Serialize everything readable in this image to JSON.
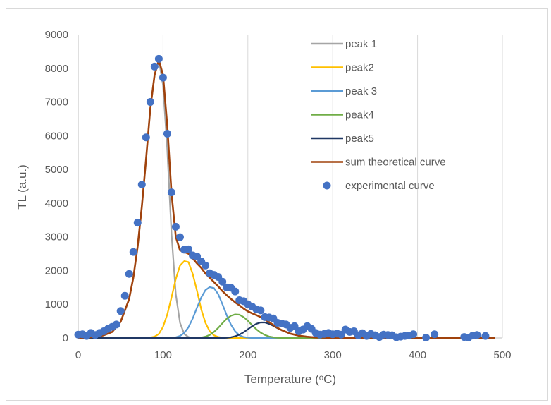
{
  "chart_data": {
    "type": "scatter",
    "title": "",
    "xlabel": "Temperature (ᵒC)",
    "ylabel": "TL (a.u.)",
    "xlim": [
      0,
      500
    ],
    "ylim": [
      0,
      9000
    ],
    "xticks": [
      0,
      100,
      200,
      300,
      400,
      500
    ],
    "yticks": [
      0,
      1000,
      2000,
      3000,
      4000,
      5000,
      6000,
      7000,
      8000,
      9000
    ],
    "grid": "vertical",
    "legend_position": "top-right",
    "curve_x": [
      0,
      20,
      30,
      40,
      50,
      60,
      65,
      70,
      75,
      80,
      85,
      90,
      95,
      100,
      105,
      110,
      115,
      120,
      125,
      130,
      135,
      140,
      145,
      150,
      155,
      160,
      165,
      170,
      175,
      180,
      185,
      190,
      195,
      200,
      205,
      210,
      215,
      220,
      225,
      230,
      235,
      240,
      250,
      260,
      270,
      280,
      300,
      320,
      350,
      400,
      450,
      490
    ],
    "series": [
      {
        "name": "peak 1",
        "kind": "line",
        "color": "#a5a5a5",
        "values": [
          0,
          30,
          80,
          180,
          480,
          1150,
          1800,
          2700,
          3900,
          5300,
          6800,
          7800,
          8250,
          7500,
          5600,
          3100,
          1300,
          450,
          120,
          30,
          5,
          0,
          0,
          0,
          0,
          0,
          0,
          0,
          0,
          0,
          0,
          0,
          0,
          0,
          0,
          0,
          0,
          0,
          0,
          0,
          0,
          0,
          0,
          0,
          0,
          0,
          0,
          0,
          0,
          0,
          0,
          0
        ]
      },
      {
        "name": "peak2",
        "kind": "line",
        "color": "#ffc000",
        "values": [
          0,
          0,
          0,
          0,
          0,
          0,
          0,
          0,
          0,
          5,
          15,
          40,
          120,
          330,
          700,
          1200,
          1750,
          2150,
          2280,
          2250,
          1900,
          1400,
          850,
          450,
          200,
          80,
          30,
          10,
          0,
          0,
          0,
          0,
          0,
          0,
          0,
          0,
          0,
          0,
          0,
          0,
          0,
          0,
          0,
          0,
          0,
          0,
          0,
          0,
          0,
          0,
          0,
          0
        ]
      },
      {
        "name": "peak 3",
        "kind": "line",
        "color": "#5b9bd5",
        "values": [
          0,
          0,
          0,
          0,
          0,
          0,
          0,
          0,
          0,
          0,
          0,
          0,
          0,
          0,
          0,
          5,
          20,
          60,
          150,
          320,
          580,
          900,
          1200,
          1420,
          1510,
          1480,
          1300,
          1000,
          680,
          400,
          200,
          80,
          30,
          10,
          0,
          0,
          0,
          0,
          0,
          0,
          0,
          0,
          0,
          0,
          0,
          0,
          0,
          0,
          0,
          0,
          0,
          0
        ]
      },
      {
        "name": "peak4",
        "kind": "line",
        "color": "#70ad47",
        "values": [
          0,
          0,
          0,
          0,
          0,
          0,
          0,
          0,
          0,
          0,
          0,
          0,
          0,
          0,
          0,
          0,
          0,
          0,
          0,
          0,
          0,
          5,
          15,
          40,
          90,
          180,
          300,
          440,
          570,
          660,
          700,
          690,
          620,
          510,
          380,
          260,
          160,
          90,
          45,
          20,
          8,
          0,
          0,
          0,
          0,
          0,
          0,
          0,
          0,
          0,
          0,
          0
        ]
      },
      {
        "name": "peak5",
        "kind": "line",
        "color": "#203864",
        "values": [
          0,
          0,
          0,
          0,
          0,
          0,
          0,
          0,
          0,
          0,
          0,
          0,
          0,
          0,
          0,
          0,
          0,
          0,
          0,
          0,
          0,
          0,
          0,
          0,
          0,
          0,
          0,
          0,
          5,
          20,
          50,
          100,
          170,
          260,
          350,
          420,
          460,
          460,
          420,
          360,
          290,
          230,
          130,
          70,
          35,
          15,
          5,
          0,
          0,
          0,
          0,
          0
        ]
      },
      {
        "name": "sum theoretical curve",
        "kind": "line",
        "color": "#a0420c",
        "values": [
          0,
          30,
          80,
          180,
          480,
          1150,
          1800,
          2700,
          3900,
          5300,
          6800,
          7800,
          8250,
          7800,
          6300,
          4300,
          3000,
          2600,
          2550,
          2500,
          2360,
          2210,
          2080,
          1910,
          1790,
          1660,
          1530,
          1390,
          1270,
          1160,
          1060,
          970,
          870,
          790,
          730,
          680,
          620,
          550,
          470,
          385,
          300,
          230,
          130,
          70,
          35,
          15,
          5,
          0,
          0,
          0,
          0,
          0
        ]
      },
      {
        "name": "experimental curve",
        "kind": "scatter",
        "color": "#4472c4",
        "points": [
          [
            0,
            100
          ],
          [
            5,
            110
          ],
          [
            10,
            60
          ],
          [
            15,
            150
          ],
          [
            20,
            90
          ],
          [
            25,
            150
          ],
          [
            30,
            200
          ],
          [
            35,
            270
          ],
          [
            40,
            330
          ],
          [
            45,
            400
          ],
          [
            50,
            800
          ],
          [
            55,
            1250
          ],
          [
            60,
            1900
          ],
          [
            65,
            2550
          ],
          [
            70,
            3420
          ],
          [
            75,
            4550
          ],
          [
            80,
            5950
          ],
          [
            85,
            7000
          ],
          [
            90,
            8050
          ],
          [
            95,
            8280
          ],
          [
            100,
            7720
          ],
          [
            105,
            6060
          ],
          [
            110,
            4320
          ],
          [
            115,
            3300
          ],
          [
            120,
            2990
          ],
          [
            125,
            2620
          ],
          [
            130,
            2630
          ],
          [
            135,
            2450
          ],
          [
            140,
            2420
          ],
          [
            145,
            2270
          ],
          [
            150,
            2150
          ],
          [
            155,
            1920
          ],
          [
            160,
            1870
          ],
          [
            165,
            1810
          ],
          [
            170,
            1670
          ],
          [
            175,
            1500
          ],
          [
            180,
            1490
          ],
          [
            185,
            1380
          ],
          [
            190,
            1120
          ],
          [
            195,
            1090
          ],
          [
            200,
            1000
          ],
          [
            205,
            930
          ],
          [
            210,
            850
          ],
          [
            215,
            820
          ],
          [
            220,
            620
          ],
          [
            225,
            610
          ],
          [
            230,
            580
          ],
          [
            235,
            450
          ],
          [
            240,
            430
          ],
          [
            245,
            400
          ],
          [
            250,
            300
          ],
          [
            255,
            350
          ],
          [
            260,
            200
          ],
          [
            265,
            250
          ],
          [
            270,
            350
          ],
          [
            275,
            270
          ],
          [
            280,
            150
          ],
          [
            285,
            100
          ],
          [
            290,
            120
          ],
          [
            295,
            150
          ],
          [
            300,
            110
          ],
          [
            305,
            130
          ],
          [
            310,
            100
          ],
          [
            315,
            250
          ],
          [
            320,
            180
          ],
          [
            325,
            200
          ],
          [
            330,
            80
          ],
          [
            335,
            140
          ],
          [
            340,
            60
          ],
          [
            345,
            120
          ],
          [
            350,
            80
          ],
          [
            355,
            30
          ],
          [
            360,
            100
          ],
          [
            365,
            90
          ],
          [
            370,
            80
          ],
          [
            375,
            20
          ],
          [
            380,
            40
          ],
          [
            385,
            60
          ],
          [
            390,
            70
          ],
          [
            395,
            110
          ],
          [
            410,
            10
          ],
          [
            420,
            110
          ],
          [
            455,
            30
          ],
          [
            460,
            10
          ],
          [
            465,
            70
          ],
          [
            470,
            90
          ],
          [
            480,
            60
          ]
        ]
      }
    ]
  }
}
